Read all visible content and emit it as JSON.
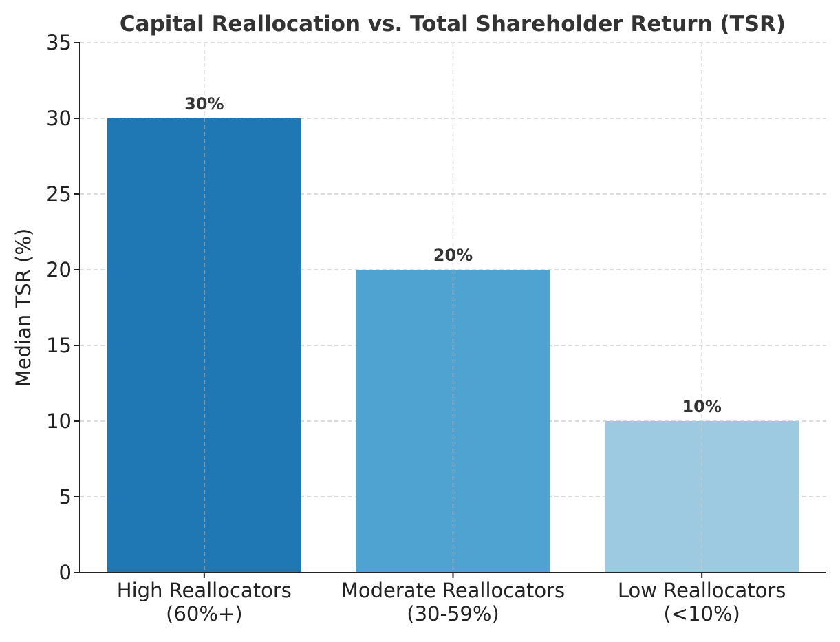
{
  "chart_data": {
    "type": "bar",
    "title": "Capital Reallocation vs. Total Shareholder Return (TSR)",
    "xlabel": "",
    "ylabel": "Median TSR (%)",
    "categories": [
      [
        "High Reallocators",
        "(60%+)"
      ],
      [
        "Moderate Reallocators",
        "(30-59%)"
      ],
      [
        "Low Reallocators",
        "(<10%)"
      ]
    ],
    "values": [
      30,
      20,
      10
    ],
    "data_labels": [
      "30%",
      "20%",
      "10%"
    ],
    "colors": [
      "#1f77b4",
      "#4fa3d1",
      "#9ecae1"
    ],
    "ylim": [
      0,
      35
    ],
    "yticks": [
      0,
      5,
      10,
      15,
      20,
      25,
      30,
      35
    ],
    "grid": true
  }
}
